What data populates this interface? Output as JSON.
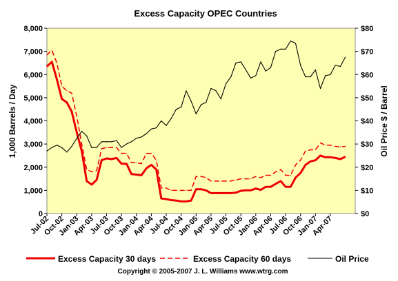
{
  "chart_data": {
    "type": "line",
    "title": "Excess Capacity OPEC Countries",
    "ylabel": "1,000 Barrels / Day",
    "y2label": "Oil Price $ / Barrel",
    "copyright": "Copyright © 2005-2007 J. L. Williams www.wtrg.com",
    "ylim": [
      0,
      8000
    ],
    "y2lim": [
      0,
      80
    ],
    "yticks": [
      "0",
      "1,000",
      "2,000",
      "3,000",
      "4,000",
      "5,000",
      "6,000",
      "7,000",
      "8,000"
    ],
    "y2ticks": [
      "$0",
      "$10",
      "$20",
      "$30",
      "$40",
      "$50",
      "$60",
      "$70",
      "$80"
    ],
    "xticks": [
      "Jul-02",
      "Oct-02",
      "Jan-03",
      "Apr-03",
      "Jul-03",
      "Oct-03",
      "Jan-04",
      "Apr-04",
      "Jul-04",
      "Oct-04",
      "Jan-05",
      "Apr-05",
      "Jul-05",
      "Oct-05",
      "Jan-06",
      "Apr-06",
      "Jul-06",
      "Oct-06",
      "Jan-07",
      "Apr-07"
    ],
    "x_range": [
      "Jul-02",
      "Sep-07"
    ],
    "grid": false,
    "legend": "bottom",
    "colors": {
      "plot_bg": "#FFFFB4",
      "excess_30": "#EE0000",
      "excess_60": "#EE0000",
      "oil_price": "#000000"
    },
    "series": [
      {
        "name": "Excess Capacity 30 days",
        "axis": "left",
        "style": "solid-thick",
        "points": [
          [
            "Jul-02",
            6350
          ],
          [
            "Aug-02",
            6550
          ],
          [
            "Sep-02",
            5800
          ],
          [
            "Oct-02",
            4950
          ],
          [
            "Nov-02",
            4800
          ],
          [
            "Dec-02",
            4400
          ],
          [
            "Jan-03",
            3500
          ],
          [
            "Feb-03",
            2700
          ],
          [
            "Mar-03",
            1400
          ],
          [
            "Apr-03",
            1250
          ],
          [
            "May-03",
            1450
          ],
          [
            "Jun-03",
            2300
          ],
          [
            "Jul-03",
            2380
          ],
          [
            "Aug-03",
            2350
          ],
          [
            "Sep-03",
            2400
          ],
          [
            "Oct-03",
            2150
          ],
          [
            "Nov-03",
            2150
          ],
          [
            "Dec-03",
            1700
          ],
          [
            "Jan-04",
            1680
          ],
          [
            "Feb-04",
            1650
          ],
          [
            "Mar-04",
            1950
          ],
          [
            "Apr-04",
            2100
          ],
          [
            "May-04",
            1900
          ],
          [
            "Jun-04",
            650
          ],
          [
            "Jul-04",
            620
          ],
          [
            "Aug-04",
            580
          ],
          [
            "Sep-04",
            560
          ],
          [
            "Oct-04",
            520
          ],
          [
            "Nov-04",
            520
          ],
          [
            "Dec-04",
            560
          ],
          [
            "Jan-05",
            1050
          ],
          [
            "Feb-05",
            1050
          ],
          [
            "Mar-05",
            1000
          ],
          [
            "Apr-05",
            880
          ],
          [
            "May-05",
            880
          ],
          [
            "Jun-05",
            880
          ],
          [
            "Jul-05",
            880
          ],
          [
            "Aug-05",
            880
          ],
          [
            "Sep-05",
            900
          ],
          [
            "Oct-05",
            980
          ],
          [
            "Nov-05",
            1000
          ],
          [
            "Dec-05",
            1000
          ],
          [
            "Jan-06",
            1080
          ],
          [
            "Feb-06",
            1020
          ],
          [
            "Mar-06",
            1150
          ],
          [
            "Apr-06",
            1150
          ],
          [
            "May-06",
            1280
          ],
          [
            "Jun-06",
            1400
          ],
          [
            "Jul-06",
            1150
          ],
          [
            "Aug-06",
            1150
          ],
          [
            "Sep-06",
            1550
          ],
          [
            "Oct-06",
            1750
          ],
          [
            "Nov-06",
            2100
          ],
          [
            "Dec-06",
            2250
          ],
          [
            "Jan-07",
            2300
          ],
          [
            "Feb-07",
            2500
          ],
          [
            "Mar-07",
            2430
          ],
          [
            "Apr-07",
            2430
          ],
          [
            "May-07",
            2400
          ],
          [
            "Jun-07",
            2350
          ],
          [
            "Jul-07",
            2450
          ]
        ]
      },
      {
        "name": "Excess Capacity 60 days",
        "axis": "left",
        "style": "dashed",
        "points": [
          [
            "Jul-02",
            6850
          ],
          [
            "Aug-02",
            7050
          ],
          [
            "Sep-02",
            6500
          ],
          [
            "Oct-02",
            5500
          ],
          [
            "Nov-02",
            5300
          ],
          [
            "Dec-02",
            5200
          ],
          [
            "Jan-03",
            4200
          ],
          [
            "Feb-03",
            3000
          ],
          [
            "Mar-03",
            1900
          ],
          [
            "Apr-03",
            1800
          ],
          [
            "May-03",
            1850
          ],
          [
            "Jun-03",
            2800
          ],
          [
            "Jul-03",
            2850
          ],
          [
            "Aug-03",
            2850
          ],
          [
            "Sep-03",
            2850
          ],
          [
            "Oct-03",
            2600
          ],
          [
            "Nov-03",
            2600
          ],
          [
            "Dec-03",
            2200
          ],
          [
            "Jan-04",
            2200
          ],
          [
            "Feb-04",
            2150
          ],
          [
            "Mar-04",
            2600
          ],
          [
            "Apr-04",
            2600
          ],
          [
            "May-04",
            2300
          ],
          [
            "Jun-04",
            1100
          ],
          [
            "Jul-04",
            1100
          ],
          [
            "Aug-04",
            1000
          ],
          [
            "Sep-04",
            1000
          ],
          [
            "Oct-04",
            1000
          ],
          [
            "Nov-04",
            1000
          ],
          [
            "Dec-04",
            1000
          ],
          [
            "Jan-05",
            1600
          ],
          [
            "Feb-05",
            1600
          ],
          [
            "Mar-05",
            1550
          ],
          [
            "Apr-05",
            1400
          ],
          [
            "May-05",
            1400
          ],
          [
            "Jun-05",
            1400
          ],
          [
            "Jul-05",
            1400
          ],
          [
            "Aug-05",
            1400
          ],
          [
            "Sep-05",
            1450
          ],
          [
            "Oct-05",
            1500
          ],
          [
            "Nov-05",
            1500
          ],
          [
            "Dec-05",
            1500
          ],
          [
            "Jan-06",
            1600
          ],
          [
            "Feb-06",
            1550
          ],
          [
            "Mar-06",
            1650
          ],
          [
            "Apr-06",
            1650
          ],
          [
            "May-06",
            1800
          ],
          [
            "Jun-06",
            1900
          ],
          [
            "Jul-06",
            1650
          ],
          [
            "Aug-06",
            1650
          ],
          [
            "Sep-06",
            2100
          ],
          [
            "Oct-06",
            2300
          ],
          [
            "Nov-06",
            2700
          ],
          [
            "Dec-06",
            2750
          ],
          [
            "Jan-07",
            2750
          ],
          [
            "Feb-07",
            3050
          ],
          [
            "Mar-07",
            2950
          ],
          [
            "Apr-07",
            2950
          ],
          [
            "May-07",
            2900
          ],
          [
            "Jun-07",
            2880
          ],
          [
            "Jul-07",
            2900
          ]
        ]
      },
      {
        "name": "Oil Price",
        "axis": "right",
        "style": "solid-thin",
        "points": [
          [
            "Jul-02",
            27
          ],
          [
            "Aug-02",
            28.5
          ],
          [
            "Sep-02",
            29.5
          ],
          [
            "Oct-02",
            28.5
          ],
          [
            "Nov-02",
            26.5
          ],
          [
            "Dec-02",
            29
          ],
          [
            "Jan-03",
            32.5
          ],
          [
            "Feb-03",
            35.5
          ],
          [
            "Mar-03",
            33.5
          ],
          [
            "Apr-03",
            28.5
          ],
          [
            "May-03",
            28.5
          ],
          [
            "Jun-03",
            31
          ],
          [
            "Jul-03",
            31
          ],
          [
            "Aug-03",
            31
          ],
          [
            "Sep-03",
            31.5
          ],
          [
            "Oct-03",
            28.5
          ],
          [
            "Nov-03",
            30
          ],
          [
            "Dec-03",
            31
          ],
          [
            "Jan-04",
            32.5
          ],
          [
            "Feb-04",
            33
          ],
          [
            "Mar-04",
            34.5
          ],
          [
            "Apr-04",
            36.5
          ],
          [
            "May-04",
            37
          ],
          [
            "Jun-04",
            40
          ],
          [
            "Jul-04",
            38
          ],
          [
            "Aug-04",
            41
          ],
          [
            "Sep-04",
            45
          ],
          [
            "Oct-04",
            46
          ],
          [
            "Nov-04",
            53
          ],
          [
            "Dec-04",
            48.5
          ],
          [
            "Jan-05",
            43
          ],
          [
            "Feb-05",
            47
          ],
          [
            "Mar-05",
            48
          ],
          [
            "Apr-05",
            54
          ],
          [
            "May-05",
            53
          ],
          [
            "Jun-05",
            49.5
          ],
          [
            "Jul-05",
            56
          ],
          [
            "Aug-05",
            59
          ],
          [
            "Sep-05",
            65
          ],
          [
            "Oct-05",
            65.5
          ],
          [
            "Nov-05",
            62
          ],
          [
            "Dec-05",
            58.5
          ],
          [
            "Jan-06",
            59.5
          ],
          [
            "Feb-06",
            65.5
          ],
          [
            "Mar-06",
            61.5
          ],
          [
            "Apr-06",
            63
          ],
          [
            "May-06",
            70
          ],
          [
            "Jun-06",
            71
          ],
          [
            "Jul-06",
            71
          ],
          [
            "Aug-06",
            74.5
          ],
          [
            "Sep-06",
            73.5
          ],
          [
            "Oct-06",
            64
          ],
          [
            "Nov-06",
            59
          ],
          [
            "Dec-06",
            59
          ],
          [
            "Jan-07",
            62
          ],
          [
            "Feb-07",
            54
          ],
          [
            "Mar-07",
            59.5
          ],
          [
            "Apr-07",
            60
          ],
          [
            "May-07",
            64
          ],
          [
            "Jun-07",
            63.5
          ],
          [
            "Jul-07",
            67.5
          ]
        ]
      }
    ]
  }
}
